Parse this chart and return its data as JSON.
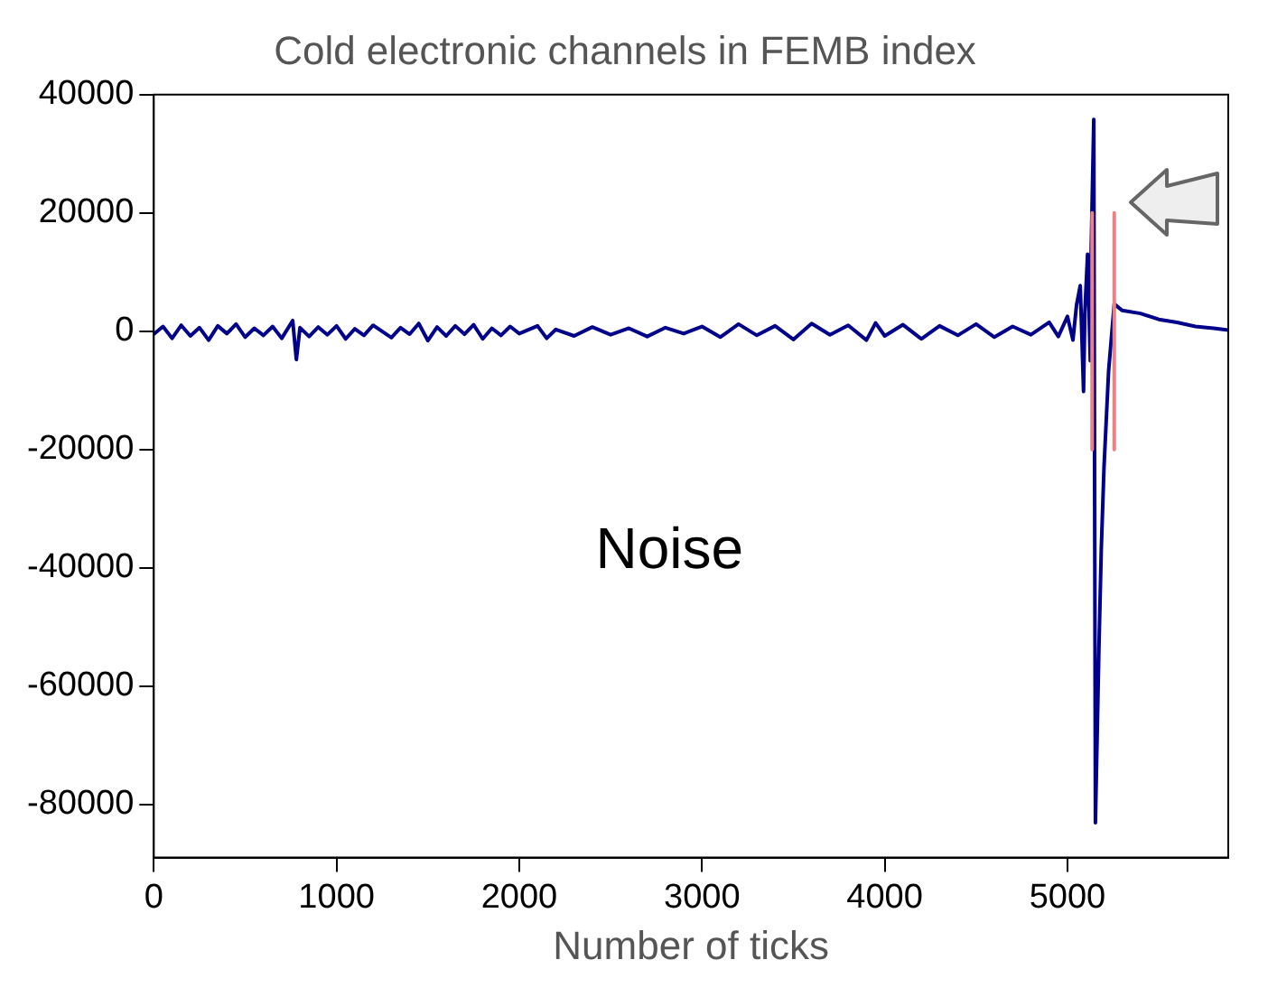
{
  "chart_data": {
    "type": "line",
    "title": "Cold electronic channels in FEMB index",
    "xlabel": "Number of ticks",
    "annotations": [
      "Noise"
    ],
    "xlim": [
      0,
      5880
    ],
    "xticks": [
      0,
      1000,
      2000,
      3000,
      4000,
      5000
    ],
    "ylim": [
      -89000,
      40000
    ],
    "yticks": [
      -80000,
      -60000,
      -40000,
      -20000,
      0,
      20000,
      40000
    ],
    "grid": false,
    "series": [
      {
        "color": "#00008b",
        "x": [
          0,
          50,
          100,
          150,
          200,
          250,
          300,
          350,
          400,
          450,
          500,
          550,
          600,
          650,
          700,
          760,
          780,
          800,
          850,
          900,
          950,
          1000,
          1050,
          1100,
          1150,
          1200,
          1300,
          1350,
          1400,
          1450,
          1500,
          1550,
          1600,
          1650,
          1700,
          1750,
          1800,
          1850,
          1900,
          1950,
          2000,
          2100,
          2150,
          2200,
          2300,
          2400,
          2500,
          2600,
          2700,
          2800,
          2900,
          3000,
          3100,
          3200,
          3300,
          3400,
          3500,
          3600,
          3700,
          3800,
          3900,
          3950,
          4000,
          4100,
          4200,
          4300,
          4400,
          4500,
          4600,
          4700,
          4800,
          4900,
          4950,
          5000,
          5030,
          5050,
          5070,
          5080,
          5088,
          5095,
          5110,
          5125,
          5130,
          5144,
          5153,
          5172,
          5185,
          5200,
          5225,
          5256,
          5300,
          5400,
          5500,
          5600,
          5700,
          5800,
          5880
        ],
        "values": [
          -500,
          800,
          -1200,
          1000,
          -800,
          600,
          -1500,
          900,
          -400,
          1200,
          -1000,
          500,
          -700,
          800,
          -1200,
          1800,
          -4800,
          600,
          -900,
          700,
          -600,
          900,
          -1300,
          400,
          -700,
          1000,
          -1100,
          600,
          -500,
          1300,
          -1600,
          700,
          -800,
          900,
          -500,
          1100,
          -1300,
          500,
          -700,
          800,
          -400,
          900,
          -1200,
          300,
          -800,
          700,
          -600,
          500,
          -900,
          600,
          -400,
          800,
          -1000,
          1200,
          -700,
          900,
          -1400,
          1300,
          -600,
          1000,
          -1500,
          1400,
          -800,
          1100,
          -1300,
          900,
          -700,
          1200,
          -1000,
          800,
          -600,
          1500,
          -900,
          2500,
          -1500,
          4500,
          7700,
          -2000,
          -10200,
          3000,
          13000,
          -5000,
          13900,
          35800,
          -83100,
          -54000,
          -37000,
          -23000,
          -6800,
          4600,
          3500,
          3000,
          2000,
          1500,
          800,
          500,
          200
        ]
      },
      {
        "color": "#f08080",
        "x": [
          5135,
          5135
        ],
        "values": [
          20000,
          -20000
        ]
      },
      {
        "color": "#f08080",
        "x": [
          5256,
          5256
        ],
        "values": [
          20000,
          -20000
        ]
      }
    ]
  }
}
